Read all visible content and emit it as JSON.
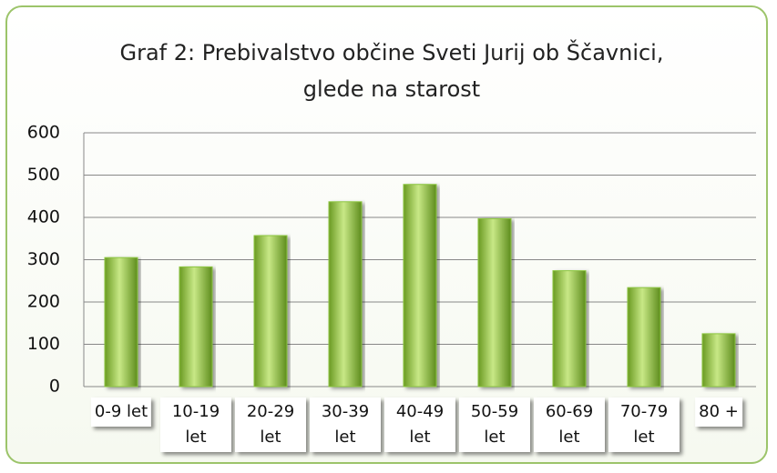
{
  "chart_data": {
    "type": "bar",
    "title": "Graf 2: Prebivalstvo občine Sveti Jurij ob Ščavnici, glede na starost",
    "categories": [
      "0-9 let",
      "10-19 let",
      "20-29 let",
      "30-39 let",
      "40-49 let",
      "50-59 let",
      "60-69 let",
      "70-79 let",
      "80 +"
    ],
    "values": [
      305,
      283,
      357,
      437,
      478,
      397,
      274,
      234,
      125
    ],
    "color": "#8cc63f",
    "ylim": [
      0,
      600
    ],
    "yticks": [
      0,
      100,
      200,
      300,
      400,
      500,
      600
    ],
    "grid": true
  }
}
